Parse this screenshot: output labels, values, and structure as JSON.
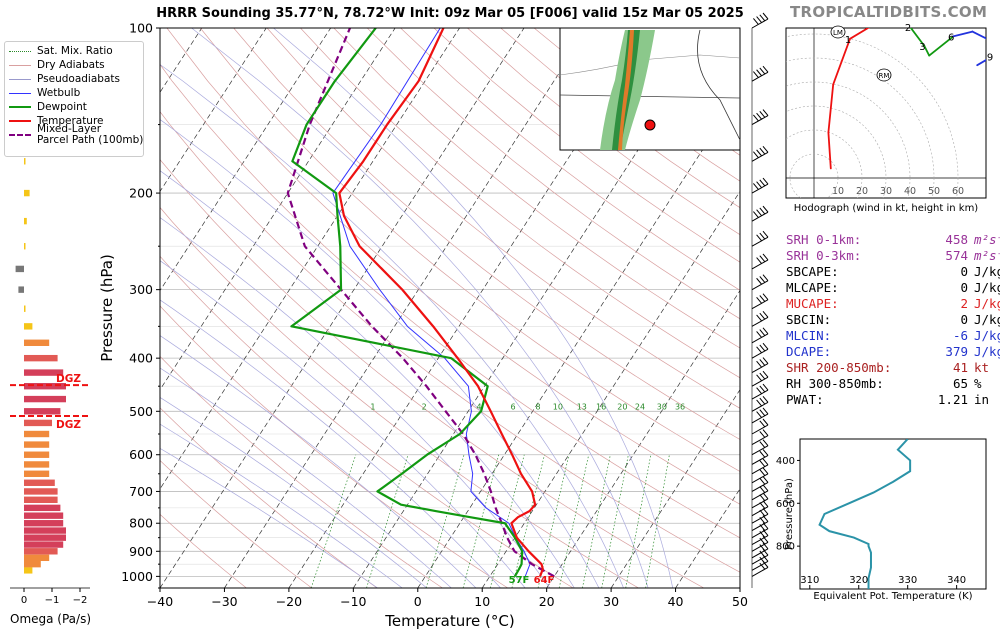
{
  "header": {
    "title": "HRRR Sounding 35.77°N, 78.72°W Init: 09z Mar 05 [F006] valid 15z Mar 05 2025",
    "brand": "TROPICALTIDBITS.COM"
  },
  "legend": {
    "items": [
      {
        "label": "Sat. Mix. Ratio",
        "color": "#2a8a2a",
        "style": "dotted"
      },
      {
        "label": "Dry Adiabats",
        "color": "#d9a0a0",
        "style": "solid"
      },
      {
        "label": "Pseudoadiabats",
        "color": "#9999cc",
        "style": "solid"
      },
      {
        "label": "Wetbulb",
        "color": "#3333ff",
        "style": "solid"
      },
      {
        "label": "Dewpoint",
        "color": "#119911",
        "style": "thick"
      },
      {
        "label": "Temperature",
        "color": "#ee1111",
        "style": "thick"
      },
      {
        "label": "Mixed-Layer\nParcel Path (100mb)",
        "color": "#800080",
        "style": "dashed"
      }
    ]
  },
  "skewt": {
    "xlabel": "Temperature (°C)",
    "ylabel": "Pressure (hPa)",
    "surface_temp_label": "64F",
    "surface_dew_label": "57F",
    "mixing_ratio_labels": [
      "1",
      "2",
      "4",
      "6",
      "8",
      "10",
      "13",
      "16",
      "20",
      "24",
      "30",
      "36"
    ]
  },
  "omega": {
    "xlabel": "Omega (Pa/s)",
    "ticks": [
      "0",
      "−1",
      "−2"
    ],
    "dgz_label": "DGZ"
  },
  "hodograph": {
    "caption": "Hodograph (wind in kt, height in km)",
    "ring_labels": [
      "10",
      "20",
      "30",
      "40",
      "50",
      "60"
    ],
    "height_labels": [
      "1",
      "2",
      "3",
      "6",
      "9"
    ],
    "markers": [
      "LM",
      "RM"
    ]
  },
  "indices": [
    {
      "label": "SRH 0-1km:",
      "value": "458",
      "unit": "m²s⁻²",
      "color": "#993399"
    },
    {
      "label": "SRH 0-3km:",
      "value": "574",
      "unit": "m²s⁻²",
      "color": "#993399"
    },
    {
      "label": "SBCAPE:",
      "value": "0",
      "unit": "J/kg",
      "color": "#000000"
    },
    {
      "label": "MLCAPE:",
      "value": "0",
      "unit": "J/kg",
      "color": "#000000"
    },
    {
      "label": "MUCAPE:",
      "value": "2",
      "unit": "J/kg",
      "color": "#dd2222"
    },
    {
      "label": "SBCIN:",
      "value": "0",
      "unit": "J/kg",
      "color": "#000000"
    },
    {
      "label": "MLCIN:",
      "value": "-6",
      "unit": "J/kg",
      "color": "#2233cc"
    },
    {
      "label": "DCAPE:",
      "value": "379",
      "unit": "J/kg",
      "color": "#2233cc"
    },
    {
      "label": "SHR 200-850mb:",
      "value": "41",
      "unit": "kt",
      "color": "#aa2222"
    },
    {
      "label": "RH 300-850mb:",
      "value": "65",
      "unit": "%",
      "color": "#000000"
    },
    {
      "label": "PWAT:",
      "value": "1.21",
      "unit": "in",
      "color": "#000000"
    }
  ],
  "theta_e_panel": {
    "xlabel": "Equivalent Pot. Temperature (K)",
    "ylabel": "Pressure (hPa)"
  },
  "chart_data": [
    {
      "type": "line",
      "title": "HRRR Sounding 35.77°N, 78.72°W Init: 09z Mar 05 [F006] valid 15z Mar 05 2025",
      "xlabel": "Temperature (°C)",
      "ylabel": "Pressure (hPa)",
      "xlim": [
        -40,
        50
      ],
      "ylim": [
        1050,
        100
      ],
      "yscale": "log",
      "xticks": [
        -40,
        -30,
        -20,
        -10,
        0,
        10,
        20,
        30,
        40,
        50
      ],
      "yticks": [
        100,
        200,
        300,
        400,
        500,
        600,
        700,
        800,
        900,
        1000
      ],
      "grid": true,
      "series": [
        {
          "name": "Temperature",
          "p": [
            1000,
            970,
            950,
            900,
            850,
            800,
            780,
            760,
            740,
            700,
            650,
            600,
            550,
            500,
            450,
            400,
            350,
            300,
            250,
            220,
            200,
            175,
            150,
            125,
            100
          ],
          "t": [
            17.8,
            17.5,
            16.8,
            13.5,
            10.3,
            8.0,
            8.4,
            9.6,
            9.8,
            8.0,
            4.5,
            1.2,
            -2.5,
            -6.5,
            -11.0,
            -17.0,
            -24.0,
            -32.5,
            -43.5,
            -49.0,
            -52.0,
            -51.5,
            -51.5,
            -51.0,
            -52.5
          ]
        },
        {
          "name": "Dewpoint",
          "p": [
            1000,
            970,
            950,
            900,
            850,
            800,
            780,
            760,
            740,
            700,
            650,
            600,
            550,
            500,
            450,
            400,
            350,
            300,
            250,
            220,
            200,
            175,
            150,
            125,
            100
          ],
          "t": [
            13.9,
            13.8,
            13.7,
            12.5,
            10.0,
            7.0,
            1.0,
            -5.0,
            -11.0,
            -16.0,
            -14.0,
            -12.0,
            -9.0,
            -8.0,
            -9.5,
            -18.0,
            -46.0,
            -42.0,
            -46.5,
            -50.0,
            -52.5,
            -62.5,
            -64.0,
            -64.0,
            -63.0
          ]
        },
        {
          "name": "Wetbulb",
          "p": [
            1000,
            950,
            900,
            850,
            800,
            750,
            700,
            650,
            600,
            550,
            500,
            450,
            400,
            350,
            300,
            250,
            200,
            150,
            100
          ],
          "t": [
            15.5,
            15.0,
            12.8,
            10.1,
            7.6,
            2.5,
            -1.5,
            -3.0,
            -5.5,
            -8.0,
            -9.5,
            -12.5,
            -19.0,
            -28.0,
            -36.0,
            -45.0,
            -53.0,
            -52.5,
            -53.0
          ]
        },
        {
          "name": "Mixed-Layer Parcel Path (100mb)",
          "p": [
            1000,
            950,
            900,
            850,
            800,
            750,
            700,
            650,
            600,
            550,
            500,
            450,
            400,
            350,
            300,
            250,
            200,
            150,
            100
          ],
          "t": [
            20.0,
            15.3,
            11.3,
            8.8,
            6.5,
            4.0,
            1.6,
            -1.2,
            -4.5,
            -8.5,
            -13.5,
            -19.0,
            -25.5,
            -33.5,
            -42.0,
            -52.0,
            -60.0,
            -63.5,
            -67.0
          ]
        }
      ],
      "surface_labels": {
        "temperature": "64F",
        "dewpoint": "57F"
      }
    },
    {
      "type": "bar",
      "xlabel": "Omega (Pa/s)",
      "xlim": [
        0.4,
        -2.6
      ],
      "orientation": "horizontal",
      "pressure_levels": [
        975,
        950,
        925,
        900,
        875,
        850,
        825,
        800,
        775,
        750,
        725,
        700,
        675,
        650,
        625,
        600,
        575,
        550,
        525,
        500,
        475,
        450,
        425,
        400,
        375,
        350,
        325,
        300,
        275,
        250,
        225,
        200,
        175,
        150
      ],
      "values": [
        -0.3,
        -0.6,
        -0.9,
        -1.2,
        -1.4,
        -1.5,
        -1.5,
        -1.4,
        -1.4,
        -1.3,
        -1.2,
        -1.2,
        -1.1,
        -0.9,
        -0.9,
        -0.9,
        -0.9,
        -0.9,
        -1.0,
        -1.3,
        -1.5,
        -1.5,
        -1.4,
        -1.2,
        -0.9,
        -0.3,
        0.0,
        0.2,
        0.3,
        0.0,
        -0.1,
        -0.2,
        0.0,
        0.1
      ],
      "dgz_lines_hpa": [
        448,
        510
      ],
      "dgz_label": "DGZ"
    },
    {
      "type": "line",
      "title": "Hodograph",
      "xlabel": "wind in kt",
      "ring_kt": [
        10,
        20,
        30,
        40,
        50,
        60
      ],
      "u": [
        7,
        6,
        8,
        15,
        25,
        34,
        40,
        46,
        48,
        58,
        66,
        74,
        80,
        68
      ],
      "v": [
        -40,
        -25,
        -5,
        14,
        20,
        22,
        19,
        11,
        7,
        15,
        17,
        13,
        10,
        3
      ],
      "height_labels": [
        "1",
        "2",
        "3",
        "6",
        "9"
      ],
      "markers": [
        "LM",
        "RM"
      ]
    },
    {
      "type": "line",
      "xlabel": "Equivalent Pot. Temperature (K)",
      "ylabel": "Pressure (hPa)",
      "xlim": [
        308,
        346
      ],
      "ylim": [
        1000,
        300
      ],
      "xticks": [
        310,
        320,
        330,
        340
      ],
      "yticks": [
        400,
        600,
        800
      ],
      "series": [
        {
          "name": "",
          "p": [
            300,
            350,
            400,
            450,
            500,
            550,
            600,
            650,
            700,
            730,
            760,
            790,
            800,
            830,
            850,
            900,
            950,
            1000
          ],
          "x": [
            330,
            328,
            330.5,
            330.5,
            327,
            323,
            318,
            313,
            312,
            314,
            319,
            322,
            322,
            322.5,
            322.5,
            322.5,
            322,
            322
          ]
        }
      ]
    }
  ]
}
